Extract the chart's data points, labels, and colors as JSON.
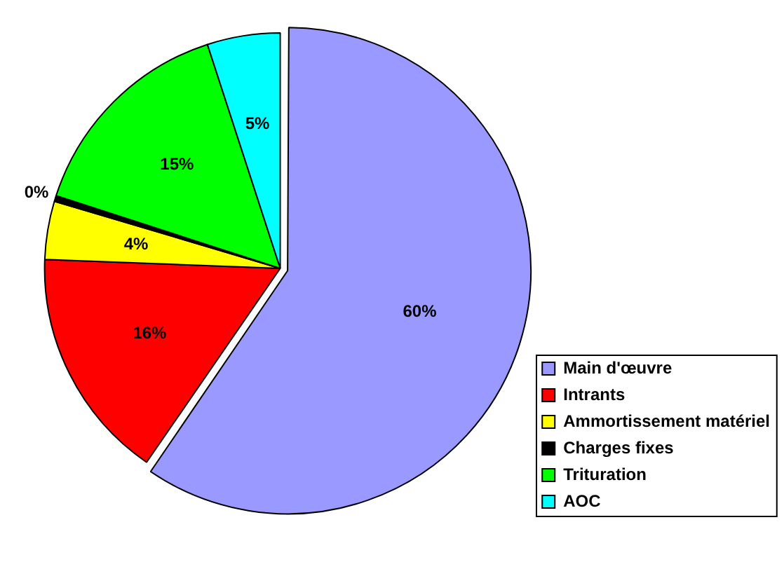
{
  "chart_data": {
    "type": "pie",
    "categories": [
      "Main d'œuvre",
      "Intrants",
      "Ammortissement matériel",
      "Charges fixes",
      "Trituration",
      "AOC"
    ],
    "values": [
      59.6,
      16,
      4,
      0.4,
      15,
      5
    ],
    "value_labels": [
      "60%",
      "16%",
      "4%",
      "0%",
      "15%",
      "5%"
    ],
    "colors": [
      "#9999ff",
      "#ff0000",
      "#ffff00",
      "#000000",
      "#00ff00",
      "#00ffff"
    ],
    "legend": "bottom right"
  }
}
